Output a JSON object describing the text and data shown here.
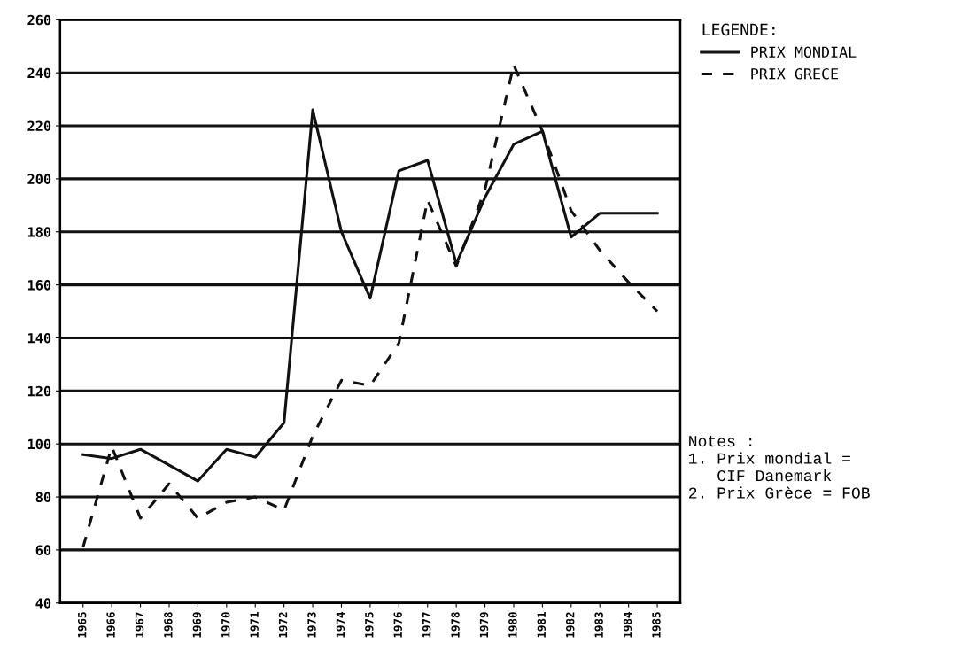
{
  "chart_data": {
    "type": "line",
    "categories": [
      "1965",
      "1966",
      "1967",
      "1968",
      "1969",
      "1970",
      "1971",
      "1972",
      "1973",
      "1974",
      "1975",
      "1976",
      "1977",
      "1978",
      "1979",
      "1980",
      "1981",
      "1982",
      "1983",
      "1984",
      "1985"
    ],
    "series": [
      {
        "name": "PRIX MONDIAL",
        "color": "#111111",
        "line_style": "solid",
        "values": [
          96,
          94.5,
          98,
          92,
          86,
          98,
          95,
          108,
          226,
          180,
          155,
          203,
          207,
          168,
          193,
          213,
          218,
          178,
          187,
          187,
          187
        ]
      },
      {
        "name": "PRIX GRECE",
        "color": "#111111",
        "line_style": "dashed",
        "values": [
          61,
          99,
          72,
          85,
          72,
          78,
          80,
          75,
          103,
          124,
          122,
          138,
          192,
          167,
          196,
          243,
          218,
          188,
          173,
          161,
          150
        ]
      }
    ],
    "ylim": [
      40,
      260
    ],
    "yticks": [
      40,
      60,
      80,
      100,
      120,
      140,
      160,
      180,
      200,
      220,
      240,
      260
    ],
    "grid": "y",
    "legend": "top right",
    "legend_title": "LEGENDE:",
    "marker": "none",
    "annotations": [
      "Notes :\n1. Prix mondial =\n   CIF Danemark\n2. Prix Grèce = FOB"
    ]
  }
}
